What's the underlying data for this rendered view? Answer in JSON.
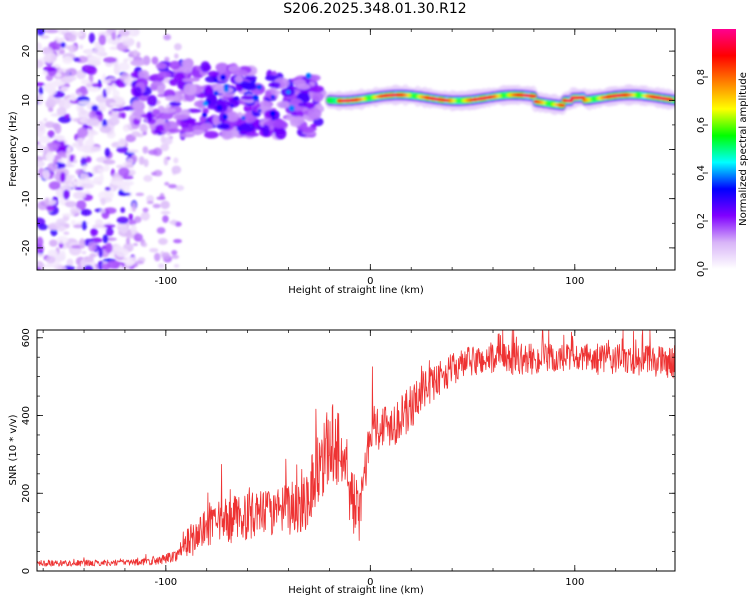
{
  "chart_data": [
    {
      "type": "heatmap",
      "title": "S206.2025.348.01.30.R12",
      "xlabel": "Height of straight line (km)",
      "ylabel": "Frequency (Hz)",
      "xlim": [
        -163,
        149
      ],
      "ylim": [
        -24.5,
        24.5
      ],
      "xticks": [
        -100,
        0,
        100
      ],
      "yticks": [
        20,
        10,
        0,
        -10,
        -20
      ],
      "colorbar": {
        "label": "Normalized spectral amplitude",
        "range": [
          0.0,
          1.0
        ],
        "ticks": [
          "0.0",
          "0.2",
          "0.4",
          "0.6",
          "0.8"
        ],
        "colormap": [
          "#ffffff",
          "#d8b4f8",
          "#8000ff",
          "#0000ff",
          "#00ffff",
          "#00ff00",
          "#ffff00",
          "#ff8000",
          "#ff0000",
          "#ff0090"
        ]
      },
      "regions": [
        {
          "name": "scattered noise",
          "x_range": [
            -163,
            -115
          ],
          "y_range": [
            -24.5,
            24.5
          ],
          "amplitude": 0.1
        },
        {
          "name": "broad band",
          "x_range": [
            -115,
            -25
          ],
          "y_range": [
            2,
            19
          ],
          "amplitude": 0.2
        },
        {
          "name": "tonal line",
          "x_range": [
            -20,
            149
          ],
          "center_freq": 10.5,
          "amplitude": 0.95
        }
      ]
    },
    {
      "type": "line",
      "title": "",
      "xlabel": "Height of straight line (km)",
      "ylabel": "SNR (10 * v/v)",
      "xlim": [
        -163,
        149
      ],
      "ylim": [
        0,
        620
      ],
      "xticks": [
        -100,
        0,
        100
      ],
      "yticks": [
        0,
        200,
        400,
        600
      ],
      "series": [
        {
          "name": "SNR",
          "color": "#ee3333",
          "x": [
            -163,
            -140,
            -120,
            -105,
            -95,
            -90,
            -80,
            -70,
            -60,
            -50,
            -45,
            -40,
            -35,
            -30,
            -25,
            -20,
            -15,
            -10,
            -5,
            0,
            5,
            10,
            15,
            20,
            25,
            30,
            40,
            50,
            60,
            75,
            100,
            120,
            140,
            149
          ],
          "y": [
            20,
            20,
            22,
            25,
            40,
            70,
            110,
            130,
            140,
            150,
            150,
            160,
            170,
            200,
            280,
            320,
            330,
            200,
            140,
            380,
            370,
            380,
            390,
            420,
            460,
            480,
            520,
            540,
            545,
            545,
            545,
            545,
            540,
            535
          ],
          "noise": [
            8,
            8,
            8,
            10,
            15,
            40,
            50,
            60,
            60,
            60,
            60,
            70,
            80,
            90,
            100,
            110,
            110,
            90,
            70,
            60,
            60,
            60,
            60,
            60,
            50,
            45,
            40,
            40,
            40,
            40,
            40,
            40,
            40,
            40
          ]
        }
      ]
    }
  ]
}
